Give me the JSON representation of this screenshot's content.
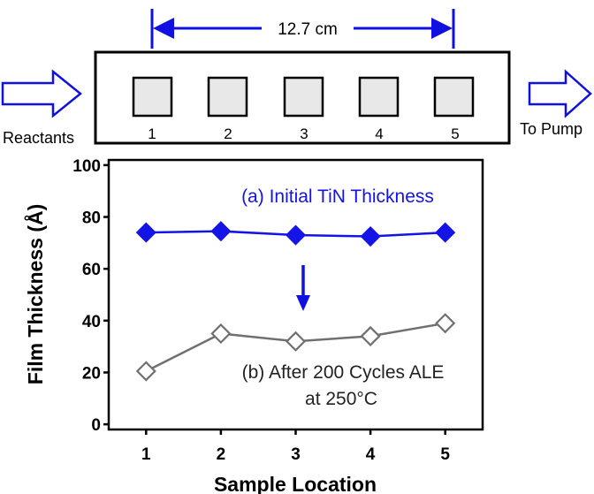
{
  "diagram": {
    "length_label": "12.7 cm",
    "inlet_label": "Reactants",
    "outlet_label": "To Pump",
    "sample_numbers": [
      "1",
      "2",
      "3",
      "4",
      "5"
    ],
    "accent_color": "#1010e0"
  },
  "chart_data": {
    "type": "line",
    "x": [
      1,
      2,
      3,
      4,
      5
    ],
    "series": [
      {
        "name": "(a) Initial TiN Thickness",
        "values": [
          74,
          74.5,
          73,
          72.5,
          74
        ],
        "color": "#1414e6",
        "marker": "filled-diamond"
      },
      {
        "name": "(b) After 200 Cycles ALE",
        "name_line2": "at 250°C",
        "values": [
          20.5,
          35,
          32,
          34,
          39
        ],
        "color": "#707070",
        "marker": "open-diamond"
      }
    ],
    "xlabel": "Sample Location",
    "ylabel": "Film Thickness (Å)",
    "xticks": [
      "1",
      "2",
      "3",
      "4",
      "5"
    ],
    "yticks": [
      "0",
      "20",
      "40",
      "60",
      "80",
      "100"
    ],
    "xlim": [
      0.5,
      5.5
    ],
    "ylim": [
      -2,
      102
    ],
    "grid": false
  }
}
